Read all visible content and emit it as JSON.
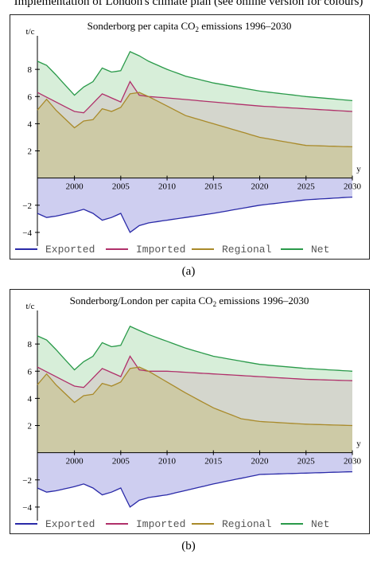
{
  "caption_top": "Implementation of London's climate plan (see online version for colours)",
  "labels": {
    "a": "(a)",
    "b": "(b)"
  },
  "legend": [
    "Exported",
    "Imported",
    "Regional",
    "Net"
  ],
  "colors": {
    "Exported": "#2a2aa8",
    "Imported": "#b0306a",
    "Regional": "#a98a2a",
    "Net": "#2a9a4a",
    "exported_fill": "#c9c9ee",
    "regional_fill": "#c8c49c",
    "imported_fill": "#cfd2c8",
    "net_fill": "#d3ecd5"
  },
  "chart_data": [
    {
      "type": "area",
      "title_main": "Sonderborg per capita CO",
      "title_sub": "2",
      "title_end": " emissions 1996–2030",
      "xlabel": "y",
      "ylabel": "t/c",
      "xlim": [
        1996,
        2030
      ],
      "ylim": [
        -5,
        10
      ],
      "xticks": [
        2000,
        2005,
        2010,
        2015,
        2020,
        2025,
        2030
      ],
      "yticks": [
        -4,
        -2,
        2,
        4,
        6,
        8
      ],
      "series": [
        {
          "name": "Net",
          "x": [
            1996,
            1997,
            1998,
            2000,
            2001,
            2002,
            2003,
            2004,
            2005,
            2006,
            2007,
            2008,
            2010,
            2012,
            2015,
            2020,
            2025,
            2030
          ],
          "values": [
            8.6,
            8.3,
            7.6,
            6.1,
            6.7,
            7.1,
            8.1,
            7.8,
            7.9,
            9.3,
            9.0,
            8.6,
            8.0,
            7.5,
            7.0,
            6.4,
            6.0,
            5.7
          ]
        },
        {
          "name": "Imported",
          "x": [
            1996,
            1998,
            2000,
            2001,
            2002,
            2003,
            2004,
            2005,
            2006,
            2007,
            2008,
            2010,
            2015,
            2020,
            2025,
            2030
          ],
          "values": [
            6.3,
            5.6,
            4.9,
            4.8,
            5.5,
            6.2,
            5.9,
            5.6,
            7.1,
            6.1,
            6.0,
            5.9,
            5.6,
            5.3,
            5.1,
            4.9
          ]
        },
        {
          "name": "Regional",
          "x": [
            1996,
            1997,
            1998,
            2000,
            2001,
            2002,
            2003,
            2004,
            2005,
            2006,
            2007,
            2008,
            2010,
            2012,
            2015,
            2020,
            2025,
            2030
          ],
          "values": [
            5.0,
            5.8,
            5.0,
            3.7,
            4.2,
            4.3,
            5.1,
            4.9,
            5.2,
            6.2,
            6.3,
            6.0,
            5.3,
            4.6,
            4.0,
            3.0,
            2.4,
            2.3
          ]
        },
        {
          "name": "Exported",
          "x": [
            1996,
            1997,
            1998,
            2000,
            2001,
            2002,
            2003,
            2004,
            2005,
            2006,
            2007,
            2008,
            2010,
            2015,
            2020,
            2025,
            2030
          ],
          "values": [
            -2.6,
            -2.9,
            -2.8,
            -2.5,
            -2.3,
            -2.6,
            -3.1,
            -2.9,
            -2.6,
            -4.0,
            -3.5,
            -3.3,
            -3.1,
            -2.6,
            -2.0,
            -1.6,
            -1.4
          ]
        }
      ]
    },
    {
      "type": "area",
      "title_main": "Sonderborg/London per capita CO",
      "title_sub": "2",
      "title_end": " emissions 1996–2030",
      "xlabel": "y",
      "ylabel": "t/c",
      "xlim": [
        1996,
        2030
      ],
      "ylim": [
        -5,
        10
      ],
      "xticks": [
        2000,
        2005,
        2010,
        2015,
        2020,
        2025,
        2030
      ],
      "yticks": [
        -4,
        -2,
        2,
        4,
        6,
        8
      ],
      "series": [
        {
          "name": "Net",
          "x": [
            1996,
            1997,
            1998,
            2000,
            2001,
            2002,
            2003,
            2004,
            2005,
            2006,
            2007,
            2008,
            2010,
            2012,
            2015,
            2020,
            2025,
            2030
          ],
          "values": [
            8.6,
            8.3,
            7.6,
            6.1,
            6.7,
            7.1,
            8.1,
            7.8,
            7.9,
            9.3,
            9.0,
            8.7,
            8.2,
            7.7,
            7.1,
            6.5,
            6.2,
            6.0
          ]
        },
        {
          "name": "Imported",
          "x": [
            1996,
            1998,
            2000,
            2001,
            2002,
            2003,
            2004,
            2005,
            2006,
            2007,
            2008,
            2010,
            2015,
            2020,
            2025,
            2030
          ],
          "values": [
            6.3,
            5.6,
            4.9,
            4.8,
            5.5,
            6.2,
            5.9,
            5.6,
            7.1,
            6.1,
            6.0,
            6.0,
            5.8,
            5.6,
            5.4,
            5.3
          ]
        },
        {
          "name": "Regional",
          "x": [
            1996,
            1997,
            1998,
            2000,
            2001,
            2002,
            2003,
            2004,
            2005,
            2006,
            2007,
            2008,
            2010,
            2012,
            2015,
            2018,
            2020,
            2025,
            2030
          ],
          "values": [
            5.0,
            5.8,
            5.0,
            3.7,
            4.2,
            4.3,
            5.1,
            4.9,
            5.2,
            6.2,
            6.3,
            6.0,
            5.2,
            4.4,
            3.3,
            2.5,
            2.3,
            2.1,
            2.0
          ]
        },
        {
          "name": "Exported",
          "x": [
            1996,
            1997,
            1998,
            2000,
            2001,
            2002,
            2003,
            2004,
            2005,
            2006,
            2007,
            2008,
            2010,
            2015,
            2020,
            2025,
            2030
          ],
          "values": [
            -2.6,
            -2.9,
            -2.8,
            -2.5,
            -2.3,
            -2.6,
            -3.1,
            -2.9,
            -2.6,
            -4.0,
            -3.5,
            -3.3,
            -3.1,
            -2.3,
            -1.6,
            -1.5,
            -1.4
          ]
        }
      ]
    }
  ]
}
